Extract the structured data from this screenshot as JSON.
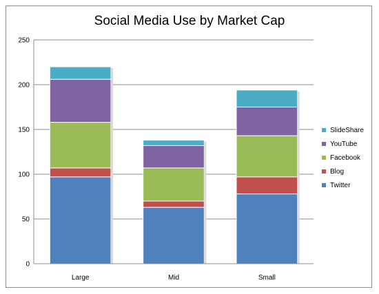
{
  "chart_data": {
    "type": "bar",
    "stacked": true,
    "title": "Social Media Use by Market Cap",
    "categories": [
      "Large",
      "Mid",
      "Small"
    ],
    "series": [
      {
        "name": "Twitter",
        "values": [
          97,
          63,
          78
        ],
        "color": "#4f81bd"
      },
      {
        "name": "Blog",
        "values": [
          10,
          7,
          19
        ],
        "color": "#c0504d"
      },
      {
        "name": "Facebook",
        "values": [
          51,
          37,
          46
        ],
        "color": "#9bbb59"
      },
      {
        "name": "YouTube",
        "values": [
          48,
          25,
          32
        ],
        "color": "#8064a2"
      },
      {
        "name": "SlideShare",
        "values": [
          14,
          6,
          19
        ],
        "color": "#4bacc6"
      }
    ],
    "ylim": [
      0,
      250
    ],
    "yticks": [
      0,
      50,
      100,
      150,
      200,
      250
    ],
    "grid": true,
    "legend_position": "right"
  }
}
